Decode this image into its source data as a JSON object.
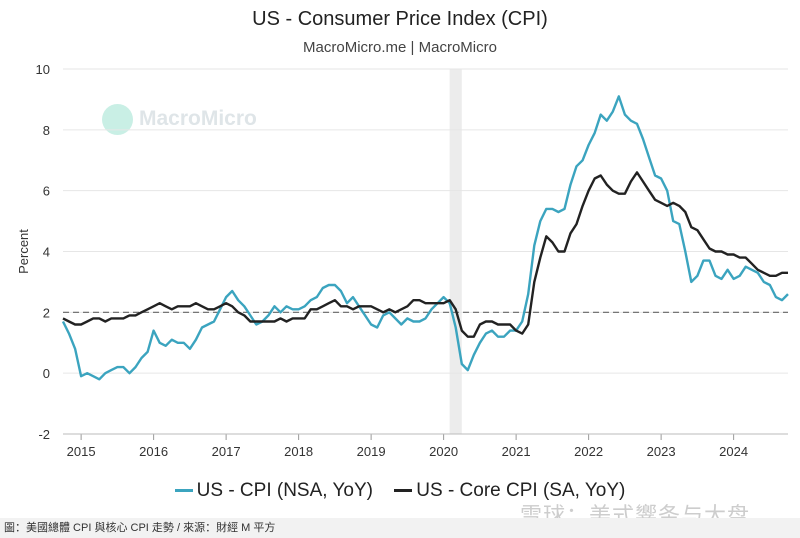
{
  "title": "US - Consumer Price Index (CPI)",
  "subtitle": "MacroMicro.me | MacroMicro",
  "watermark": "MacroMicro",
  "footer": "圖：美國總體 CPI 與核心 CPI 走勢 / 來源：財經 M 平方",
  "corner_watermark": "雪球：美式響条与大盘",
  "chart_data": {
    "type": "line",
    "title": "US - Consumer Price Index (CPI)",
    "ylabel": "Percent",
    "ylim": [
      -2,
      10
    ],
    "yticks": [
      "-2",
      "0",
      "2",
      "4",
      "6",
      "8",
      "10"
    ],
    "xlim": [
      "2014-10",
      "2024-10"
    ],
    "xticks": [
      "2015",
      "2016",
      "2017",
      "2018",
      "2019",
      "2020",
      "2021",
      "2022",
      "2023",
      "2024"
    ],
    "grid": true,
    "reference_line": 2,
    "shaded_period": [
      "2020-02",
      "2020-04"
    ],
    "legend_placement": "bottom",
    "start": "2014-10",
    "series": [
      {
        "name": "US - CPI (NSA, YoY)",
        "color": "#3ba4bf",
        "values": [
          1.7,
          1.3,
          0.8,
          -0.1,
          0.0,
          -0.1,
          -0.2,
          0.0,
          0.1,
          0.2,
          0.2,
          0.0,
          0.2,
          0.5,
          0.7,
          1.4,
          1.0,
          0.9,
          1.1,
          1.0,
          1.0,
          0.8,
          1.1,
          1.5,
          1.6,
          1.7,
          2.1,
          2.5,
          2.7,
          2.4,
          2.2,
          1.9,
          1.6,
          1.7,
          1.9,
          2.2,
          2.0,
          2.2,
          2.1,
          2.1,
          2.2,
          2.4,
          2.5,
          2.8,
          2.9,
          2.9,
          2.7,
          2.3,
          2.5,
          2.2,
          1.9,
          1.6,
          1.5,
          1.9,
          2.0,
          1.8,
          1.6,
          1.8,
          1.7,
          1.7,
          1.8,
          2.1,
          2.3,
          2.5,
          2.3,
          1.5,
          0.3,
          0.1,
          0.6,
          1.0,
          1.3,
          1.4,
          1.2,
          1.2,
          1.4,
          1.4,
          1.7,
          2.6,
          4.2,
          5.0,
          5.4,
          5.4,
          5.3,
          5.4,
          6.2,
          6.8,
          7.0,
          7.5,
          7.9,
          8.5,
          8.3,
          8.6,
          9.1,
          8.5,
          8.3,
          8.2,
          7.7,
          7.1,
          6.5,
          6.4,
          6.0,
          5.0,
          4.9,
          4.0,
          3.0,
          3.2,
          3.7,
          3.7,
          3.2,
          3.1,
          3.4,
          3.1,
          3.2,
          3.5,
          3.4,
          3.3,
          3.0,
          2.9,
          2.5,
          2.4,
          2.6
        ]
      },
      {
        "name": "US - Core CPI (SA, YoY)",
        "color": "#222222",
        "values": [
          1.8,
          1.7,
          1.6,
          1.6,
          1.7,
          1.8,
          1.8,
          1.7,
          1.8,
          1.8,
          1.8,
          1.9,
          1.9,
          2.0,
          2.1,
          2.2,
          2.3,
          2.2,
          2.1,
          2.2,
          2.2,
          2.2,
          2.3,
          2.2,
          2.1,
          2.1,
          2.2,
          2.3,
          2.2,
          2.0,
          1.9,
          1.7,
          1.7,
          1.7,
          1.7,
          1.7,
          1.8,
          1.7,
          1.8,
          1.8,
          1.8,
          2.1,
          2.1,
          2.2,
          2.3,
          2.4,
          2.2,
          2.2,
          2.1,
          2.2,
          2.2,
          2.2,
          2.1,
          2.0,
          2.1,
          2.0,
          2.1,
          2.2,
          2.4,
          2.4,
          2.3,
          2.3,
          2.3,
          2.3,
          2.4,
          2.1,
          1.4,
          1.2,
          1.2,
          1.6,
          1.7,
          1.7,
          1.6,
          1.6,
          1.6,
          1.4,
          1.3,
          1.6,
          3.0,
          3.8,
          4.5,
          4.3,
          4.0,
          4.0,
          4.6,
          4.9,
          5.5,
          6.0,
          6.4,
          6.5,
          6.2,
          6.0,
          5.9,
          5.9,
          6.3,
          6.6,
          6.3,
          6.0,
          5.7,
          5.6,
          5.5,
          5.6,
          5.5,
          5.3,
          4.8,
          4.7,
          4.4,
          4.1,
          4.0,
          4.0,
          3.9,
          3.9,
          3.8,
          3.8,
          3.6,
          3.4,
          3.3,
          3.2,
          3.2,
          3.3,
          3.3
        ]
      }
    ]
  }
}
